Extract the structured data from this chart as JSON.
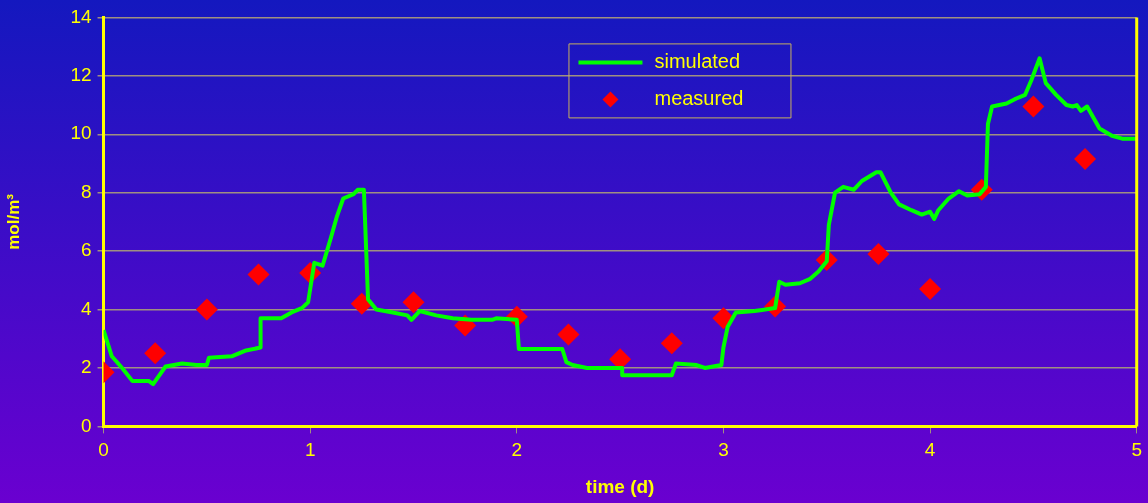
{
  "chart_data": {
    "type": "line",
    "xlabel": "time (d)",
    "ylabel": "mol/m³",
    "xlim": [
      0,
      5
    ],
    "xticks": [
      0,
      1,
      2,
      3,
      4,
      5
    ],
    "ylim": [
      0,
      14
    ],
    "yticks": [
      0,
      2,
      4,
      6,
      8,
      10,
      12,
      14
    ],
    "grid": "y",
    "legend": "top",
    "line_style": "solid",
    "series": [
      {
        "name": "simulated",
        "color": "#00ff00",
        "marker": "none",
        "x": [
          0,
          0.04,
          0.09,
          0.14,
          0.22,
          0.24,
          0.3,
          0.38,
          0.45,
          0.5,
          0.51,
          0.62,
          0.69,
          0.76,
          0.76,
          0.86,
          0.91,
          0.96,
          0.99,
          1.02,
          1.06,
          1.1,
          1.13,
          1.16,
          1.21,
          1.23,
          1.26,
          1.28,
          1.32,
          1.4,
          1.47,
          1.49,
          1.53,
          1.61,
          1.69,
          1.78,
          1.88,
          1.9,
          2.0,
          2.01,
          2.22,
          2.24,
          2.27,
          2.34,
          2.51,
          2.51,
          2.75,
          2.77,
          2.87,
          2.91,
          2.99,
          3.0,
          3.02,
          3.06,
          3.15,
          3.25,
          3.27,
          3.3,
          3.37,
          3.42,
          3.46,
          3.5,
          3.51,
          3.54,
          3.58,
          3.63,
          3.67,
          3.74,
          3.76,
          3.81,
          3.85,
          3.91,
          3.96,
          4.0,
          4.02,
          4.04,
          4.09,
          4.14,
          4.18,
          4.24,
          4.27,
          4.28,
          4.3,
          4.37,
          4.41,
          4.46,
          4.49,
          4.53,
          4.56,
          4.61,
          4.66,
          4.69,
          4.71,
          4.73,
          4.76,
          4.82,
          4.88,
          4.93,
          5.0
        ],
        "values": [
          3.3,
          2.4,
          2.0,
          1.55,
          1.55,
          1.45,
          2.05,
          2.15,
          2.1,
          2.1,
          2.35,
          2.4,
          2.6,
          2.7,
          3.7,
          3.7,
          3.9,
          4.05,
          4.25,
          5.6,
          5.5,
          6.45,
          7.2,
          7.8,
          7.95,
          8.1,
          8.1,
          4.35,
          4.0,
          3.9,
          3.8,
          3.65,
          3.95,
          3.8,
          3.7,
          3.65,
          3.65,
          3.7,
          3.65,
          2.65,
          2.65,
          2.2,
          2.1,
          2.0,
          2.0,
          1.75,
          1.75,
          2.15,
          2.1,
          2.0,
          2.1,
          2.7,
          3.4,
          3.9,
          3.95,
          4.05,
          4.95,
          4.85,
          4.9,
          5.05,
          5.3,
          5.65,
          6.9,
          8.0,
          8.2,
          8.1,
          8.4,
          8.7,
          8.7,
          8.0,
          7.6,
          7.4,
          7.25,
          7.35,
          7.1,
          7.4,
          7.8,
          8.05,
          7.9,
          7.95,
          8.2,
          10.35,
          10.95,
          11.05,
          11.2,
          11.35,
          11.85,
          12.6,
          11.75,
          11.35,
          11.0,
          10.95,
          11.0,
          10.8,
          10.95,
          10.2,
          9.95,
          9.85,
          9.85
        ]
      },
      {
        "name": "measured",
        "type": "scatter",
        "color": "#ff0000",
        "marker": "diamond",
        "x": [
          0,
          0.25,
          0.5,
          0.75,
          1,
          1.25,
          1.5,
          1.75,
          2,
          2.25,
          2.5,
          2.75,
          3,
          3.25,
          3.5,
          3.75,
          4,
          4.25,
          4.5,
          4.75
        ],
        "values": [
          1.85,
          2.5,
          4.0,
          5.2,
          5.25,
          4.2,
          4.25,
          3.45,
          3.75,
          3.15,
          2.3,
          2.85,
          3.7,
          4.1,
          5.7,
          5.9,
          4.7,
          8.1,
          10.95,
          9.15
        ]
      }
    ]
  }
}
